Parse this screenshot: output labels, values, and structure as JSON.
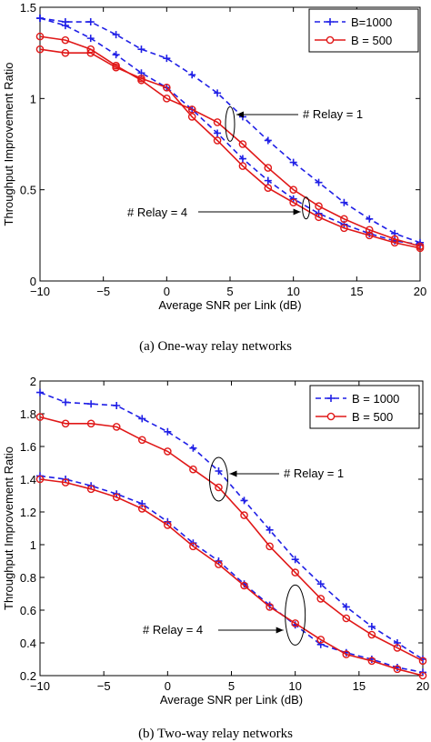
{
  "chart_data": [
    {
      "type": "line",
      "caption": "(a)  One-way relay networks",
      "xlabel": "Average SNR per Link (dB)",
      "ylabel": "Throughput Improvement Ratio",
      "xlim": [
        -10,
        20
      ],
      "ylim": [
        0,
        1.5
      ],
      "xticks": [
        "−10",
        "−5",
        "0",
        "5",
        "10",
        "15",
        "20"
      ],
      "yticks": [
        "0",
        "0.5",
        "1",
        "1.5"
      ],
      "x": [
        -10,
        -8,
        -6,
        -4,
        -2,
        0,
        2,
        4,
        6,
        8,
        10,
        12,
        14,
        16,
        18,
        20
      ],
      "legend": {
        "placement": "top-right",
        "entries": [
          "B=1000",
          "B = 500"
        ]
      },
      "series": [
        {
          "name": "B=1000",
          "style": "dashed",
          "marker": "plus",
          "color": "#1f1fe6",
          "group": "relay1",
          "values": [
            1.44,
            1.42,
            1.42,
            1.35,
            1.27,
            1.22,
            1.13,
            1.03,
            0.9,
            0.77,
            0.65,
            0.54,
            0.43,
            0.34,
            0.26,
            0.21
          ]
        },
        {
          "name": "B=1000",
          "style": "dashed",
          "marker": "plus",
          "color": "#1f1fe6",
          "group": "relay4",
          "values": [
            1.44,
            1.4,
            1.33,
            1.24,
            1.14,
            1.06,
            0.94,
            0.81,
            0.67,
            0.55,
            0.45,
            0.37,
            0.31,
            0.26,
            0.22,
            0.2
          ]
        },
        {
          "name": "B = 500",
          "style": "solid",
          "marker": "circle",
          "color": "#e01818",
          "group": "relay1",
          "values": [
            1.34,
            1.32,
            1.27,
            1.18,
            1.1,
            1.0,
            0.94,
            0.87,
            0.75,
            0.62,
            0.5,
            0.41,
            0.34,
            0.28,
            0.23,
            0.19
          ]
        },
        {
          "name": "B = 500",
          "style": "solid",
          "marker": "circle",
          "color": "#e01818",
          "group": "relay4",
          "values": [
            1.27,
            1.25,
            1.25,
            1.17,
            1.11,
            1.06,
            0.9,
            0.77,
            0.63,
            0.51,
            0.43,
            0.35,
            0.29,
            0.25,
            0.21,
            0.18
          ]
        }
      ],
      "annotations": [
        {
          "text": "# Relay = 1",
          "ellipse_x": 5,
          "ellipse_y": 0.86,
          "arrow_to_x": 5.5,
          "arrow_to_y": 0.92
        },
        {
          "text": "# Relay = 4",
          "ellipse_x": 11,
          "ellipse_y": 0.4,
          "arrow_to_x": 10.6,
          "arrow_to_y": 0.4
        }
      ]
    },
    {
      "type": "line",
      "caption": "(b)  Two-way relay networks",
      "xlabel": "Average SNR per Link (dB)",
      "ylabel": "Throughput Improvement Ratio",
      "xlim": [
        -10,
        20
      ],
      "ylim": [
        0.2,
        2
      ],
      "xticks": [
        "−10",
        "−5",
        "0",
        "5",
        "10",
        "15",
        "20"
      ],
      "yticks": [
        "0.2",
        "0.4",
        "0.6",
        "0.8",
        "1",
        "1.2",
        "1.4",
        "1.6",
        "1.8",
        "2"
      ],
      "x": [
        -10,
        -8,
        -6,
        -4,
        -2,
        0,
        2,
        4,
        6,
        8,
        10,
        12,
        14,
        16,
        18,
        20
      ],
      "legend": {
        "placement": "top-right",
        "entries": [
          "B = 1000",
          "B = 500"
        ]
      },
      "series": [
        {
          "name": "B = 1000",
          "style": "dashed",
          "marker": "plus",
          "color": "#1f1fe6",
          "group": "relay1",
          "values": [
            1.93,
            1.87,
            1.86,
            1.85,
            1.77,
            1.69,
            1.59,
            1.45,
            1.27,
            1.09,
            0.91,
            0.76,
            0.62,
            0.5,
            0.4,
            0.3
          ]
        },
        {
          "name": "B = 1000",
          "style": "dashed",
          "marker": "plus",
          "color": "#1f1fe6",
          "group": "relay4",
          "values": [
            1.42,
            1.4,
            1.36,
            1.31,
            1.25,
            1.14,
            1.01,
            0.9,
            0.76,
            0.63,
            0.51,
            0.39,
            0.34,
            0.3,
            0.25,
            0.22
          ]
        },
        {
          "name": "B = 500",
          "style": "solid",
          "marker": "circle",
          "color": "#e01818",
          "group": "relay1",
          "values": [
            1.78,
            1.74,
            1.74,
            1.72,
            1.64,
            1.57,
            1.46,
            1.35,
            1.18,
            0.99,
            0.83,
            0.67,
            0.55,
            0.45,
            0.37,
            0.29
          ]
        },
        {
          "name": "B = 500",
          "style": "solid",
          "marker": "circle",
          "color": "#e01818",
          "group": "relay4",
          "values": [
            1.4,
            1.38,
            1.34,
            1.29,
            1.22,
            1.12,
            0.99,
            0.88,
            0.75,
            0.62,
            0.52,
            0.42,
            0.33,
            0.29,
            0.24,
            0.2
          ]
        }
      ],
      "annotations": [
        {
          "text": "# Relay = 1",
          "ellipse_x": 4,
          "ellipse_y": 1.4,
          "arrow_to_x": 4.5,
          "arrow_to_y": 1.43
        },
        {
          "text": "# Relay = 4",
          "ellipse_x": 10,
          "ellipse_y": 0.57,
          "arrow_to_x": 9.5,
          "arrow_to_y": 0.52
        }
      ]
    }
  ]
}
